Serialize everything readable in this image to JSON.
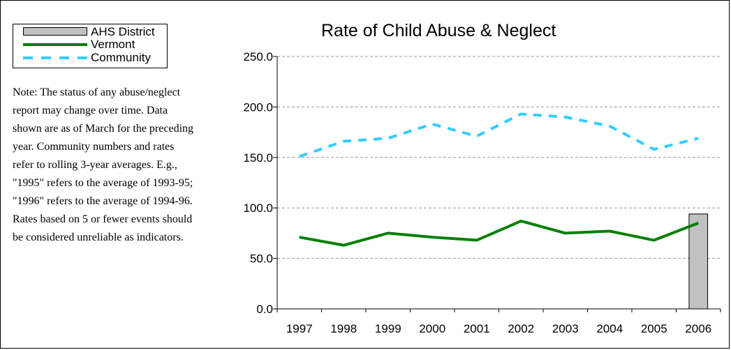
{
  "legend": {
    "items": [
      {
        "label": "AHS District",
        "color": "#c0c0c0",
        "kind": "bar"
      },
      {
        "label": "Vermont",
        "color": "#008000",
        "kind": "solid-line"
      },
      {
        "label": "Community",
        "color": "#33ccff",
        "kind": "dashed-line"
      }
    ]
  },
  "note": {
    "lines": [
      "Note: The status of any abuse/neglect",
      "report may change over time.  Data",
      "shown are as of March for the preceding",
      "year.  Community numbers and rates",
      "refer to rolling 3-year averages.  E.g.,",
      "\"1995\" refers to the average of 1993-95;",
      "\"1996\" refers to the average of 1994-96.",
      "Rates based on 5 or fewer events should",
      "be considered unreliable as indicators."
    ]
  },
  "chart_data": {
    "type": "bar",
    "title": "Rate of Child Abuse & Neglect",
    "xlabel": "",
    "ylabel": "",
    "categories": [
      "1997",
      "1998",
      "1999",
      "2000",
      "2001",
      "2002",
      "2003",
      "2004",
      "2005",
      "2006"
    ],
    "ylim": [
      0,
      250
    ],
    "yticks": [
      "0.0",
      "50.0",
      "100.0",
      "150.0",
      "200.0",
      "250.0"
    ],
    "grid": true,
    "gridStyle": "dashed",
    "legend_position": "top-left",
    "series": [
      {
        "name": "AHS District",
        "type": "bar",
        "color": "#c0c0c0",
        "values": [
          null,
          null,
          null,
          null,
          null,
          null,
          null,
          null,
          null,
          94
        ]
      },
      {
        "name": "Vermont",
        "type": "line",
        "style": "solid",
        "color": "#008000",
        "values": [
          71,
          63,
          75,
          71,
          68,
          87,
          75,
          77,
          68,
          85
        ]
      },
      {
        "name": "Community",
        "type": "line",
        "style": "dashed",
        "color": "#33ccff",
        "values": [
          151,
          166,
          169,
          183,
          171,
          193,
          190,
          181,
          158,
          169
        ]
      }
    ]
  }
}
